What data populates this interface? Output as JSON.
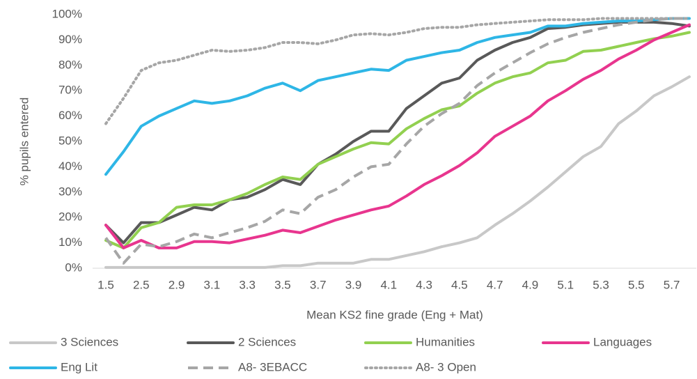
{
  "chart_data": {
    "type": "line",
    "x_label": "Mean KS2 fine grade (Eng + Mat)",
    "y_label": "% pupils entered",
    "categories": [
      "1.5",
      null,
      "2.5",
      null,
      "2.9",
      null,
      "3.1",
      null,
      "3.3",
      null,
      "3.5",
      null,
      "3.7",
      null,
      "3.9",
      null,
      "4.1",
      null,
      "4.3",
      null,
      "4.5",
      null,
      "4.7",
      null,
      "4.9",
      null,
      "5.1",
      null,
      "5.3",
      null,
      "5.5",
      null,
      "5.7",
      null
    ],
    "ylim": [
      0,
      100
    ],
    "yticks": [
      {
        "value": 0,
        "label": "0%"
      },
      {
        "value": 10,
        "label": "10%"
      },
      {
        "value": 20,
        "label": "20%"
      },
      {
        "value": 30,
        "label": "30%"
      },
      {
        "value": 40,
        "label": "40%"
      },
      {
        "value": 50,
        "label": "50%"
      },
      {
        "value": 60,
        "label": "60%"
      },
      {
        "value": 70,
        "label": "70%"
      },
      {
        "value": 80,
        "label": "80%"
      },
      {
        "value": 90,
        "label": "90%"
      },
      {
        "value": 100,
        "label": "100%"
      }
    ],
    "grid": false,
    "legend": "bottom",
    "series": [
      {
        "name": "3 Sciences",
        "color": "#c8c8c8",
        "style": "solid",
        "values": [
          0.3,
          0.3,
          0.3,
          0.3,
          0.3,
          0.3,
          0.3,
          0.3,
          0.3,
          0.3,
          1,
          1,
          2,
          2,
          2,
          3.5,
          3.5,
          5,
          6.5,
          8.5,
          10,
          12,
          17,
          21.5,
          26.5,
          32,
          38,
          44,
          48,
          57,
          62,
          68,
          71.5,
          75.5
        ]
      },
      {
        "name": "2 Sciences",
        "color": "#595959",
        "style": "solid",
        "values": [
          17,
          10,
          18,
          18,
          21,
          24,
          23,
          27,
          28,
          31,
          35,
          33,
          41,
          45,
          50,
          54,
          54,
          63,
          68,
          73,
          75,
          82,
          86,
          89,
          91,
          94.5,
          95,
          96,
          96.5,
          97,
          97,
          97,
          96.5,
          95.5
        ]
      },
      {
        "name": "Humanities",
        "color": "#92d050",
        "style": "solid",
        "values": [
          11,
          8,
          16,
          18,
          24,
          25,
          25,
          27,
          29.5,
          33,
          36,
          35,
          41,
          44,
          47,
          49.5,
          49,
          55,
          59,
          62.5,
          64,
          69,
          73,
          75.5,
          77,
          81,
          82,
          85.5,
          86,
          87.5,
          89,
          90.5,
          91.5,
          93
        ]
      },
      {
        "name": "Languages",
        "color": "#e8358e",
        "style": "solid",
        "values": [
          17,
          8,
          11,
          8,
          8,
          10.5,
          10.5,
          10,
          11.5,
          13,
          15,
          14,
          16.5,
          19,
          21,
          23,
          24.5,
          28.5,
          33,
          36.5,
          40.5,
          45.5,
          52,
          56,
          60,
          66,
          70,
          74.5,
          78,
          82.5,
          86,
          90,
          93,
          96
        ]
      },
      {
        "name": "Eng Lit",
        "color": "#2eb6e6",
        "style": "solid",
        "values": [
          37,
          46,
          56,
          60,
          63,
          66,
          65,
          66,
          68,
          71,
          73,
          70,
          74,
          75.5,
          77,
          78.5,
          78,
          82,
          83.5,
          85,
          86,
          89,
          91,
          92,
          93,
          95.5,
          95.5,
          96.5,
          97,
          97.5,
          97.5,
          98,
          98.5,
          98.5
        ]
      },
      {
        "name": "A8- 3EBACC",
        "color": "#a6a6a6",
        "style": "dashed",
        "values": [
          12,
          2,
          9.5,
          8.5,
          10.5,
          13.5,
          12,
          14,
          16,
          18.5,
          23,
          21.5,
          28,
          31,
          36,
          40,
          41,
          49,
          56,
          61,
          65,
          72,
          77,
          81,
          85,
          88.5,
          91,
          93,
          94.5,
          96,
          97,
          98,
          98.5,
          98.5
        ]
      },
      {
        "name": "A8- 3 Open",
        "color": "#a6a6a6",
        "style": "dotted",
        "values": [
          57,
          67,
          78,
          81,
          82,
          84,
          86,
          85.5,
          86,
          87,
          89,
          89,
          88.5,
          90,
          92,
          92.5,
          92,
          93,
          94.5,
          95,
          95,
          96,
          96.5,
          97,
          97.5,
          98,
          98,
          98,
          98.5,
          98.5,
          98.5,
          98.5,
          98.5,
          98.5
        ]
      }
    ]
  }
}
